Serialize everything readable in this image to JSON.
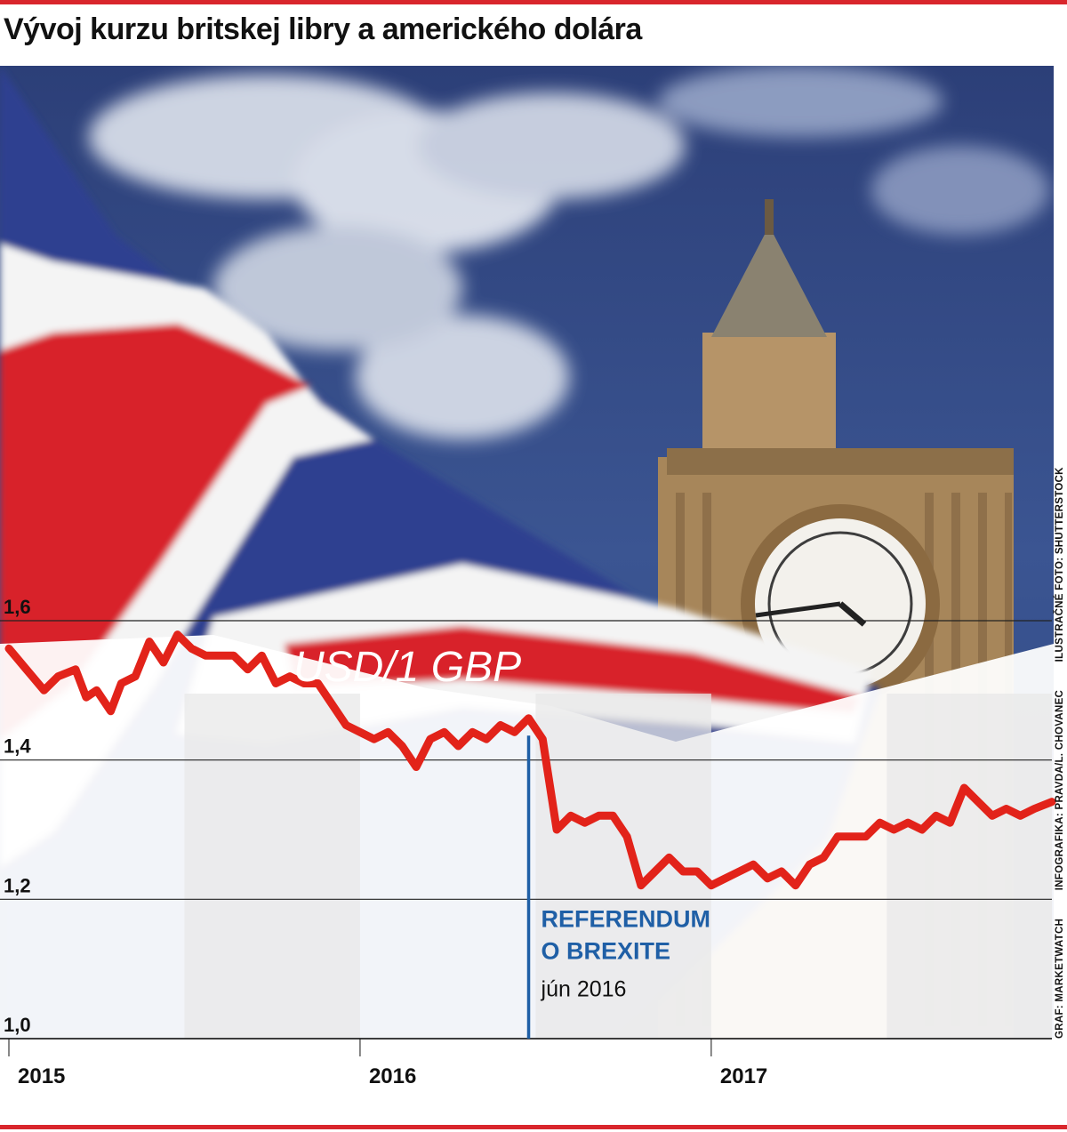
{
  "title": "Vývoj kurzu britskej libry a amerického dolára",
  "credits": {
    "source": "GRAF: MARKETWATCH",
    "graphics": "INFOGRAFIKA: PRAVDA/L. CHOVANEC",
    "photo": "ILUSTRAČNÉ FOTO: SHUTTERSTOCK"
  },
  "photo": {
    "description_icons": [
      "union-jack-flag",
      "big-ben-tower"
    ]
  },
  "colors": {
    "accent": "#d9262c",
    "line": "#e2231a",
    "marker": "#1f5fa6",
    "sky": "#2e4a86",
    "band": "#e8e8e8"
  },
  "chart_data": {
    "type": "line",
    "title": "USD/1 GBP",
    "xlabel": "",
    "ylabel": "",
    "ylim": [
      1.0,
      1.6
    ],
    "yticks": [
      "1,0",
      "1,2",
      "1,4",
      "1,6"
    ],
    "ytick_values": [
      1.0,
      1.2,
      1.4,
      1.6
    ],
    "xticks": [
      "2015",
      "2016",
      "2017"
    ],
    "xtick_values": [
      2015.0,
      2016.0,
      2017.0
    ],
    "xlim": [
      2015.0,
      2017.97
    ],
    "grid": true,
    "series": [
      {
        "values": [
          [
            2015.0,
            1.56
          ],
          [
            2015.05,
            1.53
          ],
          [
            2015.1,
            1.5
          ],
          [
            2015.14,
            1.52
          ],
          [
            2015.19,
            1.53
          ],
          [
            2015.22,
            1.49
          ],
          [
            2015.25,
            1.5
          ],
          [
            2015.29,
            1.47
          ],
          [
            2015.32,
            1.51
          ],
          [
            2015.36,
            1.52
          ],
          [
            2015.4,
            1.57
          ],
          [
            2015.44,
            1.54
          ],
          [
            2015.48,
            1.58
          ],
          [
            2015.52,
            1.56
          ],
          [
            2015.56,
            1.55
          ],
          [
            2015.6,
            1.55
          ],
          [
            2015.64,
            1.55
          ],
          [
            2015.68,
            1.53
          ],
          [
            2015.72,
            1.55
          ],
          [
            2015.76,
            1.51
          ],
          [
            2015.8,
            1.52
          ],
          [
            2015.84,
            1.51
          ],
          [
            2015.88,
            1.51
          ],
          [
            2015.92,
            1.48
          ],
          [
            2015.96,
            1.45
          ],
          [
            2016.0,
            1.44
          ],
          [
            2016.04,
            1.43
          ],
          [
            2016.08,
            1.44
          ],
          [
            2016.12,
            1.42
          ],
          [
            2016.16,
            1.39
          ],
          [
            2016.2,
            1.43
          ],
          [
            2016.24,
            1.44
          ],
          [
            2016.28,
            1.42
          ],
          [
            2016.32,
            1.44
          ],
          [
            2016.36,
            1.43
          ],
          [
            2016.4,
            1.45
          ],
          [
            2016.44,
            1.44
          ],
          [
            2016.48,
            1.46
          ],
          [
            2016.52,
            1.43
          ],
          [
            2016.56,
            1.3
          ],
          [
            2016.6,
            1.32
          ],
          [
            2016.64,
            1.31
          ],
          [
            2016.68,
            1.32
          ],
          [
            2016.72,
            1.32
          ],
          [
            2016.76,
            1.29
          ],
          [
            2016.8,
            1.22
          ],
          [
            2016.84,
            1.24
          ],
          [
            2016.88,
            1.26
          ],
          [
            2016.92,
            1.24
          ],
          [
            2016.96,
            1.24
          ],
          [
            2017.0,
            1.22
          ],
          [
            2017.04,
            1.23
          ],
          [
            2017.08,
            1.24
          ],
          [
            2017.12,
            1.25
          ],
          [
            2017.16,
            1.23
          ],
          [
            2017.2,
            1.24
          ],
          [
            2017.24,
            1.22
          ],
          [
            2017.28,
            1.25
          ],
          [
            2017.32,
            1.26
          ],
          [
            2017.36,
            1.29
          ],
          [
            2017.4,
            1.29
          ],
          [
            2017.44,
            1.29
          ],
          [
            2017.48,
            1.31
          ],
          [
            2017.52,
            1.3
          ],
          [
            2017.56,
            1.31
          ],
          [
            2017.6,
            1.3
          ],
          [
            2017.64,
            1.32
          ],
          [
            2017.68,
            1.31
          ],
          [
            2017.72,
            1.36
          ],
          [
            2017.76,
            1.34
          ],
          [
            2017.8,
            1.32
          ],
          [
            2017.84,
            1.33
          ],
          [
            2017.88,
            1.32
          ],
          [
            2017.92,
            1.33
          ],
          [
            2017.97,
            1.34
          ]
        ]
      }
    ],
    "annotations": [
      {
        "x": 2016.48,
        "lines": [
          "REFERENDUM",
          "O BREXITE"
        ],
        "sub": "jún 2016"
      }
    ]
  }
}
